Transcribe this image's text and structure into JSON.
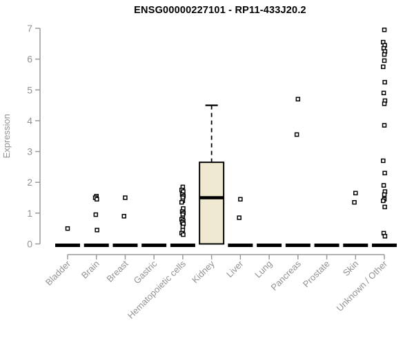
{
  "chart_data": {
    "type": "boxplot",
    "title": "ENSG00000227101 - RP11-433J20.2",
    "xlabel": "",
    "ylabel": "Expression",
    "ylim": [
      0,
      7
    ],
    "yticks": [
      0,
      1,
      2,
      3,
      4,
      5,
      6,
      7
    ],
    "grid": false,
    "legend": false,
    "categories": [
      "Bladder",
      "Brain",
      "Breast",
      "Gastric",
      "Hematopoietic cells",
      "Kidney",
      "Liver",
      "Lung",
      "Pancreas",
      "Prostate",
      "Skin",
      "Unknown / Other"
    ],
    "boxes": [
      {
        "category": "Bladder",
        "q1": 0,
        "median": 0,
        "q3": 0,
        "whisker_low": 0,
        "whisker_high": 0,
        "outliers": [
          0.5
        ]
      },
      {
        "category": "Brain",
        "q1": 0,
        "median": 0,
        "q3": 0,
        "whisker_low": 0,
        "whisker_high": 0,
        "outliers": [
          1.55,
          1.5,
          1.45,
          0.95,
          0.45
        ]
      },
      {
        "category": "Breast",
        "q1": 0,
        "median": 0,
        "q3": 0,
        "whisker_low": 0,
        "whisker_high": 0,
        "outliers": [
          1.5,
          0.9
        ]
      },
      {
        "category": "Gastric",
        "q1": 0,
        "median": 0,
        "q3": 0,
        "whisker_low": 0,
        "whisker_high": 0,
        "outliers": []
      },
      {
        "category": "Hematopoietic cells",
        "q1": 0,
        "median": 0,
        "q3": 0,
        "whisker_low": 0,
        "whisker_high": 0,
        "outliers": [
          1.85,
          1.75,
          1.7,
          1.6,
          1.55,
          1.5,
          1.4,
          1.35,
          1.15,
          1.05,
          1.0,
          0.95,
          0.85,
          0.8,
          0.75,
          0.7,
          0.65,
          0.55,
          0.45,
          0.35,
          0.3
        ]
      },
      {
        "category": "Kidney",
        "q1": 0,
        "median": 1.5,
        "q3": 2.65,
        "whisker_low": 0,
        "whisker_high": 4.5,
        "outliers": []
      },
      {
        "category": "Liver",
        "q1": 0,
        "median": 0,
        "q3": 0,
        "whisker_low": 0,
        "whisker_high": 0,
        "outliers": [
          1.45,
          0.85
        ]
      },
      {
        "category": "Lung",
        "q1": 0,
        "median": 0,
        "q3": 0,
        "whisker_low": 0,
        "whisker_high": 0,
        "outliers": []
      },
      {
        "category": "Pancreas",
        "q1": 0,
        "median": 0,
        "q3": 0,
        "whisker_low": 0,
        "whisker_high": 0,
        "outliers": [
          4.7,
          3.55
        ]
      },
      {
        "category": "Prostate",
        "q1": 0,
        "median": 0,
        "q3": 0,
        "whisker_low": 0,
        "whisker_high": 0,
        "outliers": []
      },
      {
        "category": "Skin",
        "q1": 0,
        "median": 0,
        "q3": 0,
        "whisker_low": 0,
        "whisker_high": 0,
        "outliers": [
          1.65,
          1.35
        ]
      },
      {
        "category": "Unknown / Other",
        "q1": 0,
        "median": 0,
        "q3": 0,
        "whisker_low": 0,
        "whisker_high": 0,
        "outliers": [
          6.95,
          6.55,
          6.45,
          6.35,
          6.25,
          6.15,
          5.95,
          5.75,
          5.25,
          4.9,
          4.65,
          4.55,
          3.85,
          2.7,
          2.3,
          1.9,
          1.7,
          1.6,
          1.45,
          1.4,
          1.2,
          0.35,
          0.25
        ]
      }
    ],
    "colors": {
      "box_fill": "#f0e9d2",
      "box_border": "#000000",
      "median": "#000000",
      "outlier_stroke": "#000000",
      "outlier_fill": "#ffffff",
      "axis": "#9a9a9a",
      "label": "#929292",
      "title": "#000000",
      "background": "#ffffff"
    }
  }
}
